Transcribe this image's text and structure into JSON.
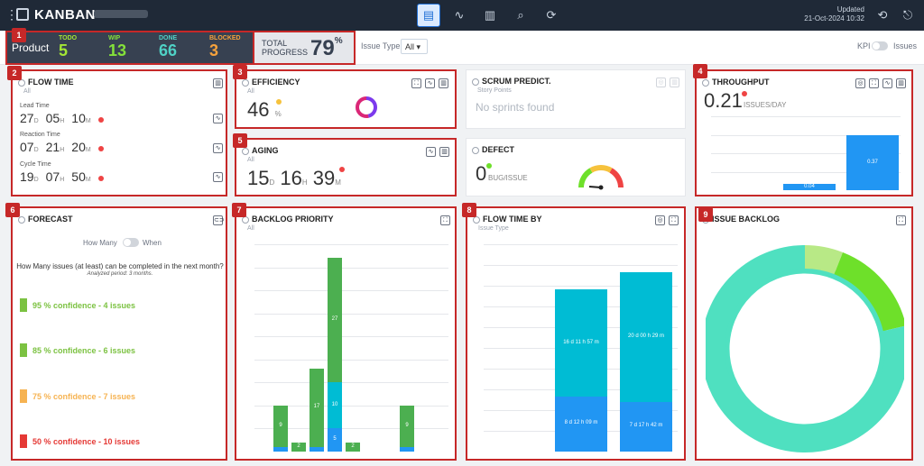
{
  "topbar": {
    "brand": "KANBAN",
    "updated_label": "Updated",
    "updated_value": "21-Oct-2024 10:32"
  },
  "summary": {
    "product_label": "Product",
    "stats": [
      {
        "label": "TODO",
        "value": "5",
        "color": "#a3e635"
      },
      {
        "label": "WIP",
        "value": "13",
        "color": "#84e13a"
      },
      {
        "label": "DONE",
        "value": "66",
        "color": "#4fd1c5"
      },
      {
        "label": "BLOCKED",
        "value": "3",
        "color": "#f6a23c"
      }
    ],
    "progress_label_1": "TOTAL",
    "progress_label_2": "PROGRESS",
    "progress_value": "79",
    "progress_unit": "%"
  },
  "filters": {
    "issue_type_label": "Issue Type",
    "issue_type_value": "All",
    "kpi_label": "KPI",
    "issues_label": "Issues"
  },
  "badges": [
    "1",
    "2",
    "3",
    "4",
    "5",
    "6",
    "7",
    "8",
    "9"
  ],
  "flow_time": {
    "title": "FLOW TIME",
    "sub": "All",
    "rows": [
      {
        "label": "Lead Time",
        "d": "27",
        "h": "05",
        "m": "10"
      },
      {
        "label": "Reaction Time",
        "d": "07",
        "h": "21",
        "h_unit": "H",
        "m": "20"
      },
      {
        "label": "Cycle Time",
        "d": "19",
        "h": "07",
        "m": "50"
      }
    ],
    "units": {
      "d": "D",
      "h": "H",
      "m": "M"
    }
  },
  "efficiency": {
    "title": "EFFICIENCY",
    "sub": "All",
    "value": "46",
    "unit": "%",
    "ratio": 0.46
  },
  "scrum": {
    "title": "SCRUM PREDICT.",
    "sub": "Story Points",
    "empty": "No sprints found"
  },
  "throughput": {
    "title": "THROUGHPUT",
    "value": "0.21",
    "unit": "ISSUES/DAY",
    "chart_data": {
      "type": "bar",
      "values": [
        0.04,
        0.37
      ],
      "labels": [
        "0.04",
        "0.37"
      ],
      "ylim": [
        0,
        0.5
      ]
    }
  },
  "aging": {
    "title": "AGING",
    "sub": "All",
    "d": "15",
    "h": "16",
    "m": "39",
    "units": {
      "d": "D",
      "h": "H",
      "m": "M"
    }
  },
  "defect": {
    "title": "DEFECT",
    "value": "0",
    "unit": "BUG/ISSUE"
  },
  "forecast": {
    "title": "FORECAST",
    "toggle_left": "How Many",
    "toggle_right": "When",
    "question": "How Many issues (at least) can be completed in the next month?",
    "note": "Analyzed period: 3 months.",
    "lines": [
      {
        "text": "95 % confidence - 4 issues",
        "color": "#7cc242"
      },
      {
        "text": "85 % confidence - 6 issues",
        "color": "#7cc242"
      },
      {
        "text": "75 % confidence - 7 issues",
        "color": "#f6b352"
      },
      {
        "text": "50 % confidence - 10 issues",
        "color": "#e53935"
      }
    ]
  },
  "backlog_priority": {
    "title": "BACKLOG PRIORITY",
    "sub": "All",
    "chart_data": {
      "type": "bar",
      "stacks": [
        {
          "green": 9,
          "blue": 1,
          "labels": [
            "9"
          ]
        },
        {
          "green": 2,
          "blue": 0,
          "labels": [
            "2"
          ]
        },
        {
          "green": 17,
          "blue": 1,
          "labels": [
            "17"
          ]
        },
        {
          "green": 27,
          "teal": 10,
          "blue": 5,
          "labels": [
            "27",
            "10",
            "5"
          ]
        },
        {
          "green": 2,
          "blue": 0,
          "labels": [
            "2"
          ]
        },
        {
          "green": 0,
          "blue": 0,
          "labels": []
        },
        {
          "green": 0,
          "blue": 0,
          "labels": []
        },
        {
          "green": 9,
          "blue": 1,
          "labels": [
            "9"
          ]
        }
      ]
    }
  },
  "flow_time_by": {
    "title": "FLOW TIME BY",
    "sub": "Issue Type",
    "chart_data": {
      "type": "bar",
      "bars": [
        {
          "top": "16 d 11 h 57 m",
          "bottom": "8 d 12 h 09 m",
          "top_val": 16.5,
          "bottom_val": 8.5
        },
        {
          "top": "20 d 00 h 29 m",
          "bottom": "7 d 17 h 42 m",
          "top_val": 20.0,
          "bottom_val": 7.7
        }
      ]
    }
  },
  "issue_backlog": {
    "title": "ISSUE BACKLOG",
    "chart_data": {
      "type": "pie",
      "outer": [
        {
          "color": "#b8e986",
          "value": 5
        },
        {
          "color": "#6ee02a",
          "value": 13
        },
        {
          "color": "#4fe0c0",
          "value": 66
        }
      ]
    }
  }
}
